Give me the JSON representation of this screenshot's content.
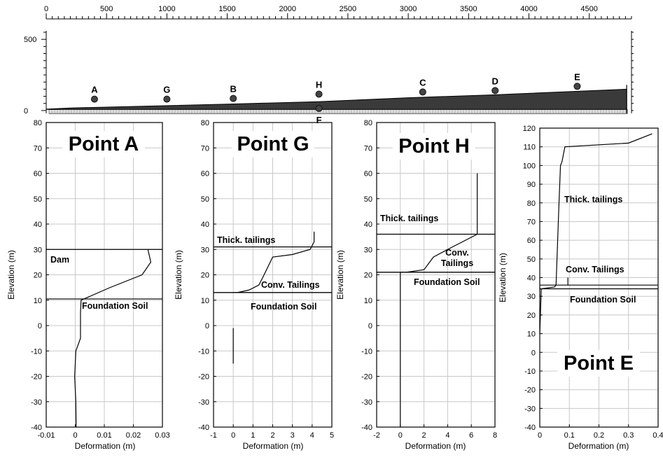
{
  "chart_data": [
    {
      "panel": "section",
      "type": "line",
      "x_ticks": [
        0,
        500,
        1000,
        1500,
        2000,
        2500,
        3000,
        3500,
        4000,
        4500
      ],
      "y_ticks": [
        0,
        500
      ],
      "xlim": [
        0,
        4850
      ],
      "ylim": [
        -40,
        560
      ],
      "surface": [
        [
          0,
          10
        ],
        [
          200,
          18
        ],
        [
          800,
          30
        ],
        [
          1500,
          45
        ],
        [
          2250,
          62
        ],
        [
          3000,
          90
        ],
        [
          3700,
          110
        ],
        [
          4400,
          135
        ],
        [
          4810,
          150
        ]
      ],
      "points": [
        {
          "label": "A",
          "x": 400,
          "y": 80
        },
        {
          "label": "G",
          "x": 1000,
          "y": 80
        },
        {
          "label": "B",
          "x": 1550,
          "y": 85
        },
        {
          "label": "H",
          "x": 2260,
          "y": 115
        },
        {
          "label": "C",
          "x": 3120,
          "y": 130
        },
        {
          "label": "D",
          "x": 3720,
          "y": 140
        },
        {
          "label": "E",
          "x": 4400,
          "y": 170
        },
        {
          "label": "F",
          "x": 2260,
          "y": 15
        }
      ]
    },
    {
      "panel": "A",
      "type": "line",
      "title": "Point A",
      "xlabel": "Deformation (m)",
      "ylabel": "Elevation (m)",
      "xlim": [
        -0.01,
        0.03
      ],
      "ylim": [
        -40,
        80
      ],
      "x_ticks": [
        -0.01,
        0,
        0.01,
        0.02,
        0.03
      ],
      "x_tick_labels": [
        "-0.01",
        "0",
        "0.01",
        "0.02",
        "0.03"
      ],
      "y_ticks": [
        -40,
        -30,
        -20,
        -10,
        0,
        10,
        20,
        30,
        40,
        50,
        60,
        70,
        80
      ],
      "grid": true,
      "x": [
        0.0003,
        0.0002,
        -0.0002,
        0.0002,
        0.0018,
        0.0018,
        0.002,
        0.012,
        0.023,
        0.026,
        0.025
      ],
      "y": [
        -40,
        -30,
        -20,
        -10,
        -5,
        5,
        10,
        15,
        20,
        25,
        30
      ],
      "layers": [
        {
          "y": 30,
          "label": "Dam"
        },
        {
          "y": 10.5,
          "label": "Foundation Soil"
        }
      ]
    },
    {
      "panel": "G",
      "type": "line",
      "title": "Point G",
      "xlabel": "Deformation (m)",
      "ylabel": "Elevation (m)",
      "xlim": [
        -1,
        5
      ],
      "ylim": [
        -40,
        80
      ],
      "x_ticks": [
        -1,
        0,
        1,
        2,
        3,
        4,
        5
      ],
      "x_tick_labels": [
        "-1",
        "0",
        "1",
        "2",
        "3",
        "4",
        "5"
      ],
      "y_ticks": [
        -40,
        -30,
        -20,
        -10,
        0,
        10,
        20,
        30,
        40,
        50,
        60,
        70,
        80
      ],
      "grid": true,
      "x": [
        0,
        0.2,
        0.8,
        1.3,
        1.5,
        2,
        3,
        3.9,
        4.1,
        4.1
      ],
      "y": [
        13,
        13,
        14,
        16,
        19,
        27,
        28,
        30,
        33,
        37
      ],
      "x2": [
        0,
        0
      ],
      "y2": [
        -1,
        -15
      ],
      "layers": [
        {
          "y": 31,
          "label": "Thick. tailings"
        },
        {
          "y": 13,
          "label": "Conv. Tailings"
        },
        {
          "y": 13,
          "label": "Foundation Soil"
        }
      ]
    },
    {
      "panel": "H",
      "type": "line",
      "title": "Point H",
      "xlabel": "Deformation (m)",
      "ylabel": "Elevation (m)",
      "xlim": [
        -2,
        8
      ],
      "ylim": [
        -40,
        80
      ],
      "x_ticks": [
        -2,
        0,
        2,
        4,
        6,
        8
      ],
      "x_tick_labels": [
        "-2",
        "0",
        "2",
        "4",
        "6",
        "8"
      ],
      "y_ticks": [
        -40,
        -30,
        -20,
        -10,
        0,
        10,
        20,
        30,
        40,
        50,
        60,
        70,
        80
      ],
      "grid": true,
      "x": [
        0,
        0,
        0.5,
        2,
        2.8,
        4,
        6.5,
        6.5
      ],
      "y": [
        -40,
        21,
        21,
        22,
        27,
        30,
        36,
        60
      ],
      "layers": [
        {
          "y": 36,
          "label": "Thick. tailings"
        },
        {
          "y": 21,
          "label": "Conv. Tailings"
        },
        {
          "y": 21,
          "label": "Foundation Soil"
        }
      ]
    },
    {
      "panel": "E",
      "type": "line",
      "title": "Point E",
      "xlabel": "Deformation (m)",
      "ylabel": "Elevation (m)",
      "xlim": [
        0,
        0.4
      ],
      "ylim": [
        -40,
        120
      ],
      "x_ticks": [
        0,
        0.1,
        0.2,
        0.3,
        0.4
      ],
      "x_tick_labels": [
        "0",
        "0.1",
        "0.2",
        "0.3",
        "0.4"
      ],
      "y_ticks": [
        -40,
        -30,
        -20,
        -10,
        0,
        10,
        20,
        30,
        40,
        50,
        60,
        70,
        80,
        90,
        100,
        110,
        120
      ],
      "grid": true,
      "x": [
        0,
        0.005,
        0.05,
        0.055,
        0.065,
        0.07,
        0.075,
        0.085,
        0.3,
        0.38
      ],
      "y": [
        10,
        34,
        35,
        36,
        80,
        100,
        102,
        110,
        112,
        117
      ],
      "x2": [
        0.095,
        0.095
      ],
      "y2": [
        36,
        40
      ],
      "layers": [
        {
          "y": 36,
          "label": "Conv. Tailings"
        },
        {
          "y": 34,
          "label": "Foundation Soil"
        }
      ],
      "extra_label": "Thick. tailings"
    }
  ]
}
